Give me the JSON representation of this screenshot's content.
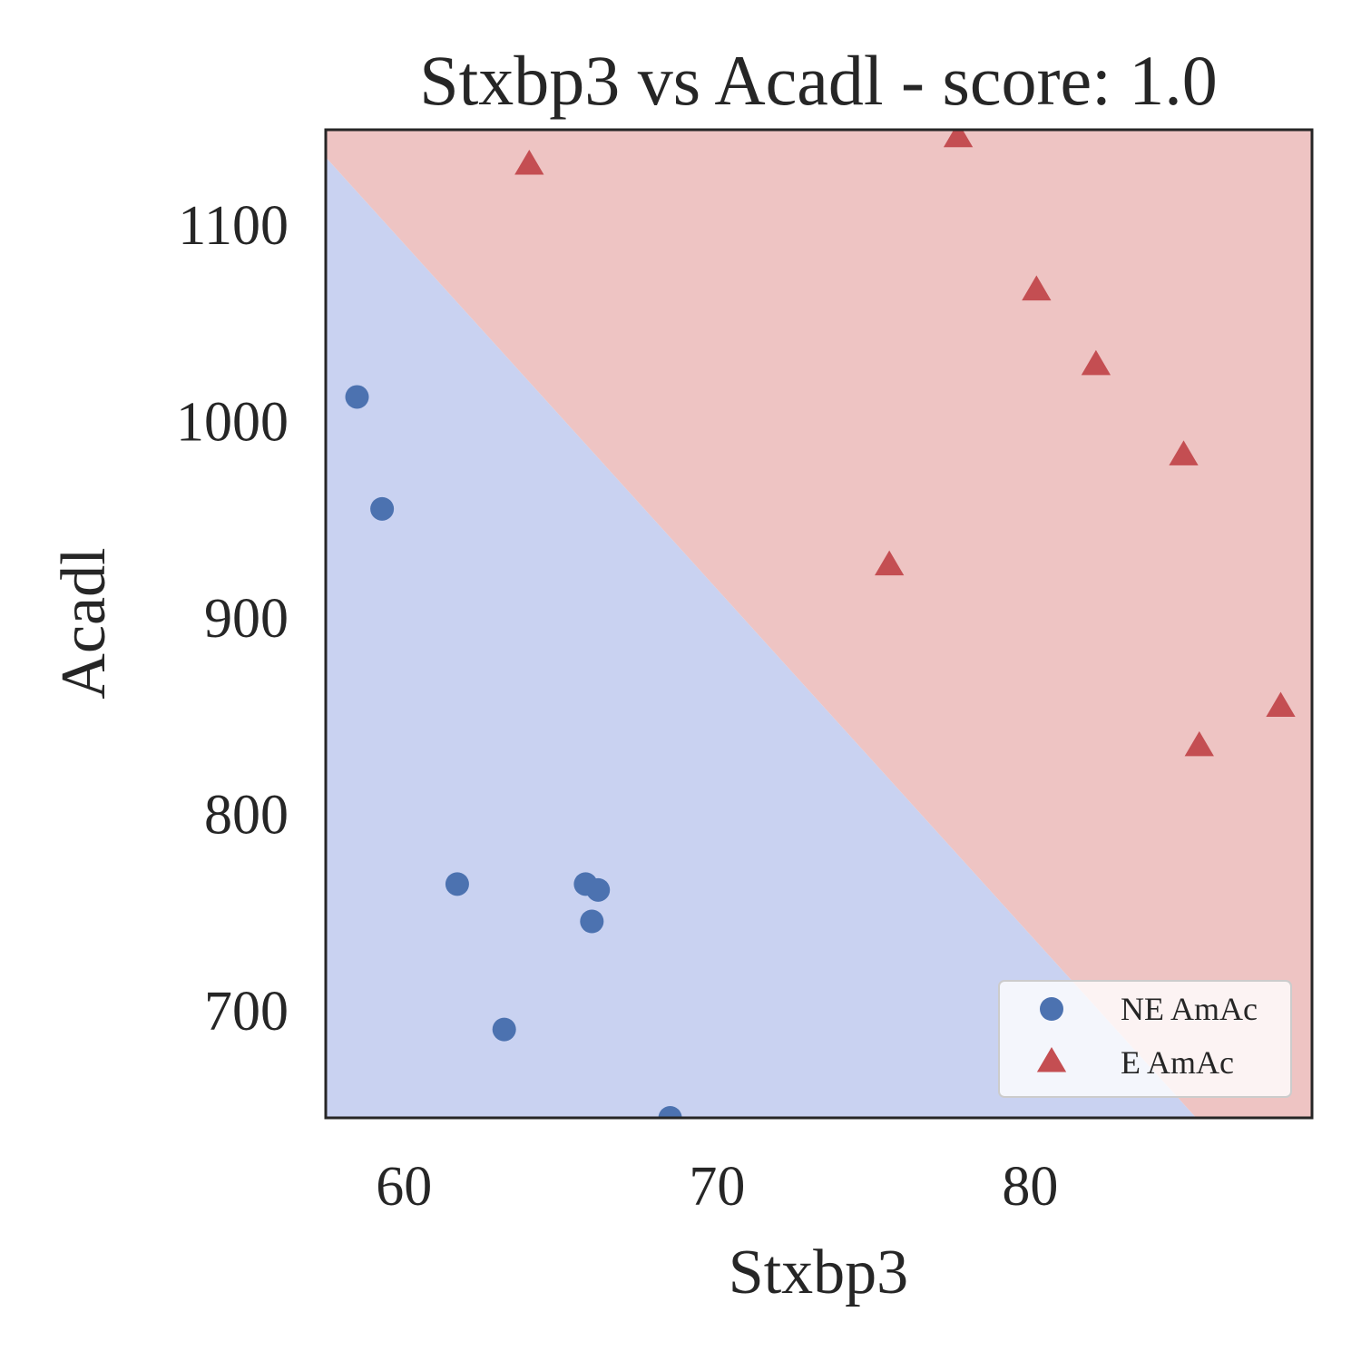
{
  "chart_data": {
    "type": "scatter",
    "title": "Stxbp3 vs Acadl - score: 1.0",
    "xlabel": "Stxbp3",
    "ylabel": "Acadl",
    "xlim": [
      57.5,
      89.0
    ],
    "ylim": [
      645,
      1148
    ],
    "xticks": [
      60,
      70,
      80
    ],
    "yticks": [
      700,
      800,
      900,
      1000,
      1100
    ],
    "grid": false,
    "legend_position": "bottom-right",
    "decision_boundary": {
      "points": [
        [
          57.5,
          1134
        ],
        [
          85.3,
          645
        ]
      ],
      "colors": {
        "NE AmAc": "#c9d2f1",
        "E AmAc": "#eec4c3"
      }
    },
    "series": [
      {
        "name": "NE AmAc",
        "marker": "circle",
        "color": "#4c72b0",
        "points": [
          [
            58.5,
            1012
          ],
          [
            59.3,
            955
          ],
          [
            61.7,
            764
          ],
          [
            63.2,
            690
          ],
          [
            65.8,
            764
          ],
          [
            66.2,
            761
          ],
          [
            66.0,
            745
          ],
          [
            68.5,
            645
          ]
        ]
      },
      {
        "name": "E AmAc",
        "marker": "triangle",
        "color": "#c44e52",
        "points": [
          [
            64.0,
            1130
          ],
          [
            77.7,
            1144
          ],
          [
            80.2,
            1066
          ],
          [
            82.1,
            1028
          ],
          [
            84.9,
            982
          ],
          [
            75.5,
            926
          ],
          [
            85.4,
            834
          ],
          [
            88.0,
            854
          ]
        ]
      }
    ]
  }
}
